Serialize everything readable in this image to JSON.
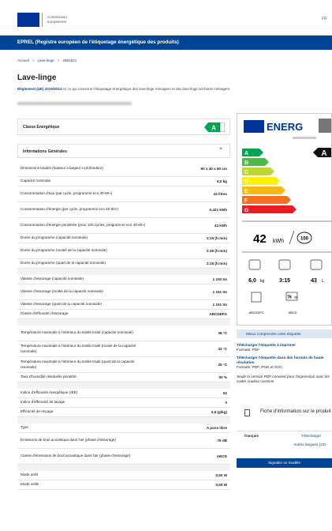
{
  "header": {
    "org_line1": "Commission",
    "org_line2": "européenne",
    "language": "FR",
    "banner": "EPREL (Registre européen de l'étiquetage énergétique des produits)"
  },
  "breadcrumb": [
    "Accueil",
    "Lave-linge",
    "2561621"
  ],
  "title": "Lave-linge",
  "subtitle": {
    "link": "Règlement (UE) 2019/2014",
    "text": " en ce qui concerne l'étiquetage énergétique des lave-linge ménagers et des lave-linge séchants ménagers"
  },
  "energy_class": {
    "label": "Classe Energétique",
    "value": "A"
  },
  "general_info": {
    "title": "Informations Générales",
    "groups": [
      [
        [
          "Dimensions totales (hauteur x largeur x profondeur)",
          "90 x 40 x 60 cm"
        ],
        [
          "Capacité nominale",
          "6,0 kg"
        ],
        [
          "Consommation d'eau (par cycle, programme eco 40-60»)",
          "43 litres"
        ],
        [
          "Consommation d'énergie (par cycle, programme eco 40-60»)",
          "0,421 kWh"
        ],
        [
          "Consommation d'énergie pondérée (pour 100 cycles, programme eco 40-60»)",
          "42 kWh"
        ],
        [
          "Durée du programme (capacité nominale)",
          "3:15 (h:min)"
        ],
        [
          "Durée du programme (moitié de la capacité nominale)",
          "2:35 (h:min)"
        ],
        [
          "Durée du programme (quart de la capacité nominale)",
          "2:15 (h:min)"
        ]
      ],
      [
        [
          "Vitesse d'essorage (capacité nominale)",
          "1 100 tm"
        ],
        [
          "Vitesse d'essorage (moitié de la capacité nominale)",
          "1 151 tm"
        ],
        [
          "Vitesse d'essorage (quart de la capacité nominale)",
          "1 151 tm"
        ],
        [
          "Classe d'efficacité d'essorage",
          "ABCDEFG"
        ]
      ],
      [
        [
          "Température maximale à l'intérieur du textile traité (capacité nominale)",
          "38 °C"
        ],
        [
          "Température maximale à l'intérieur du textile traité (moitié de la capacité nominale)",
          "33 °C"
        ],
        [
          "Température maximale à l'intérieur du textile traité (quart de la capacité nominale)",
          "25 °C"
        ],
        [
          "Taux d'humidité résiduelle pondéré",
          "50 %"
        ]
      ],
      [
        [
          "Indice d'efficacité énergétique (IEE)",
          "52"
        ],
        [
          "Indice d'efficacité de lavage",
          "0"
        ],
        [
          "Efficacité de rinçage",
          "0,0 (g/kg)"
        ]
      ],
      [
        [
          "Type",
          "A pose libre"
        ],
        [
          "Émissions de bruit acoustique dans l'air (phase d'essorage)",
          "76 dB"
        ],
        [
          "Classe d'émissions de bruit acoustique dans l'air (phase d'essorage)",
          "ABCD"
        ]
      ],
      [
        [
          "Mode arrêt",
          "0,50 W"
        ],
        [
          "Mode veille",
          "0,50 W"
        ]
      ]
    ]
  },
  "label": {
    "brand": "ENERG",
    "classes": [
      "A",
      "B",
      "C",
      "D",
      "E",
      "F",
      "G"
    ],
    "colors": [
      "#00a651",
      "#50b848",
      "#bed630",
      "#fff200",
      "#fdb913",
      "#f37021",
      "#ed1c24"
    ],
    "class": "A",
    "energy": "42",
    "energy_unit": "kWh",
    "cycles": "100",
    "capacity": "6,0",
    "capacity_unit": "kg",
    "duration": "3:15",
    "water": "43",
    "water_unit": "L",
    "spin_class": "ABCDEFG",
    "noise": "76",
    "noise_unit": "dB",
    "noise_class": "ABCD"
  },
  "side": {
    "understand": "Mieux comprendre cette étiquette",
    "download_print": "Télécharger l'étiquette à imprimer",
    "format_print": "Formats: PDF",
    "download_hr": "Télécharger l'étiquette dans des formats de haute résolution",
    "format_hr": "Formats: PDF, PNG et SVG",
    "note": "Seule la version PDF convient pour l'impression avec les codes couleur corrects",
    "sheet": "Fiche d'information sur le produit",
    "sheet_lang": "français",
    "sheet_download": "Télécharger",
    "other_langs": "Autres langues (23)",
    "report": "Signalez ce modèle"
  }
}
